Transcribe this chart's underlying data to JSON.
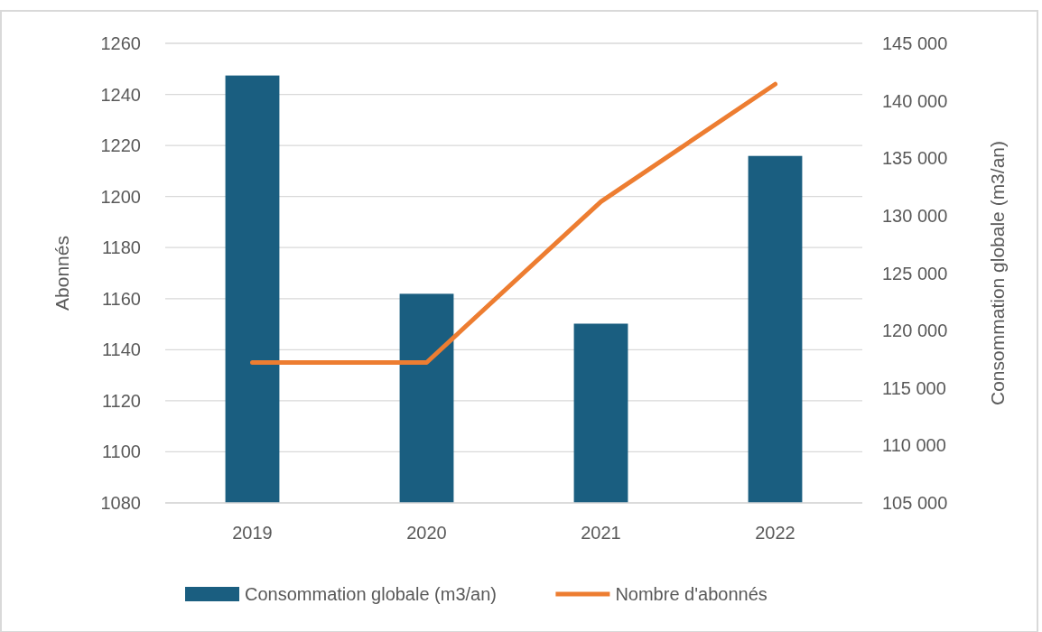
{
  "chart_data": {
    "type": "bar",
    "categories": [
      "2019",
      "2020",
      "2021",
      "2022"
    ],
    "series": [
      {
        "name": "Consommation globale (m3/an)",
        "axis": "y2",
        "color": "#1a5e80",
        "values": [
          142200,
          123200,
          120600,
          135200
        ]
      },
      {
        "name": "Nombre d'abonnés",
        "type": "line",
        "color": "#ed7d31",
        "values": [
          1135,
          1135,
          1198,
          1244
        ]
      }
    ],
    "ylabel": "Abonnés",
    "y2label": "Consommation globale (m3/an)",
    "ylim": [
      1080,
      1260
    ],
    "yticks": [
      1080,
      1100,
      1120,
      1140,
      1160,
      1180,
      1200,
      1220,
      1240,
      1260
    ],
    "y2lim": [
      105000,
      145000
    ],
    "y2ticks": [
      {
        "value": 105000,
        "label": "105 000"
      },
      {
        "value": 110000,
        "label": "110 000"
      },
      {
        "value": 115000,
        "label": "115 000"
      },
      {
        "value": 120000,
        "label": "120 000"
      },
      {
        "value": 125000,
        "label": "125 000"
      },
      {
        "value": 130000,
        "label": "130 000"
      },
      {
        "value": 135000,
        "label": "135 000"
      },
      {
        "value": 140000,
        "label": "140 000"
      },
      {
        "value": 145000,
        "label": "145 000"
      }
    ],
    "grid": "y",
    "legend": "bottom",
    "marker": "none",
    "line_style": "solid"
  }
}
